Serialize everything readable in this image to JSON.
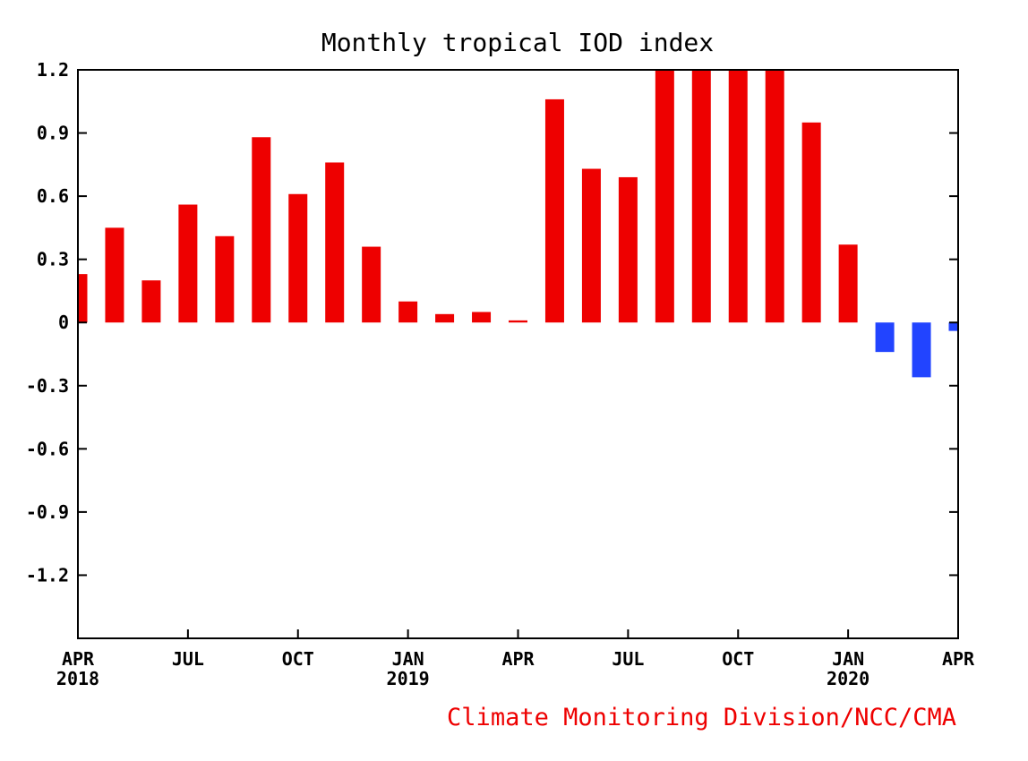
{
  "chart_data": {
    "type": "bar",
    "title": "Monthly tropical IOD index",
    "xlabel": "",
    "ylabel": "",
    "ylim": [
      -1.5,
      1.2
    ],
    "y_ticks": [
      1.2,
      0.9,
      0.6,
      0.3,
      0,
      -0.3,
      -0.6,
      -0.9,
      -1.2
    ],
    "y_tick_labels": [
      "1.2",
      "0.9",
      "0.6",
      "0.3",
      "0",
      "-0.3",
      "-0.6",
      "-0.9",
      "-1.2"
    ],
    "x_ticks": [
      {
        "index": 0,
        "month": "APR",
        "year": "2018"
      },
      {
        "index": 3,
        "month": "JUL",
        "year": ""
      },
      {
        "index": 6,
        "month": "OCT",
        "year": ""
      },
      {
        "index": 9,
        "month": "JAN",
        "year": "2019"
      },
      {
        "index": 12,
        "month": "APR",
        "year": ""
      },
      {
        "index": 15,
        "month": "JUL",
        "year": ""
      },
      {
        "index": 18,
        "month": "OCT",
        "year": ""
      },
      {
        "index": 21,
        "month": "JAN",
        "year": "2020"
      },
      {
        "index": 24,
        "month": "APR",
        "year": ""
      }
    ],
    "months": [
      "2018-04",
      "2018-05",
      "2018-06",
      "2018-07",
      "2018-08",
      "2018-09",
      "2018-10",
      "2018-11",
      "2018-12",
      "2019-01",
      "2019-02",
      "2019-03",
      "2019-04",
      "2019-05",
      "2019-06",
      "2019-07",
      "2019-08",
      "2019-09",
      "2019-10",
      "2019-11",
      "2019-12",
      "2020-01",
      "2020-02",
      "2020-03",
      "2020-04"
    ],
    "values": [
      0.23,
      0.45,
      0.2,
      0.56,
      0.41,
      0.88,
      0.61,
      0.76,
      0.36,
      0.1,
      0.04,
      0.05,
      0.01,
      1.06,
      0.73,
      0.69,
      1.2,
      1.2,
      1.2,
      1.2,
      0.95,
      0.37,
      -0.14,
      -0.26,
      -0.04
    ],
    "positive_color": "#ee0000",
    "negative_color": "#2244ff",
    "grid": false
  },
  "credit": {
    "text": "Climate Monitoring Division/NCC/CMA",
    "color": "#ee0000"
  }
}
